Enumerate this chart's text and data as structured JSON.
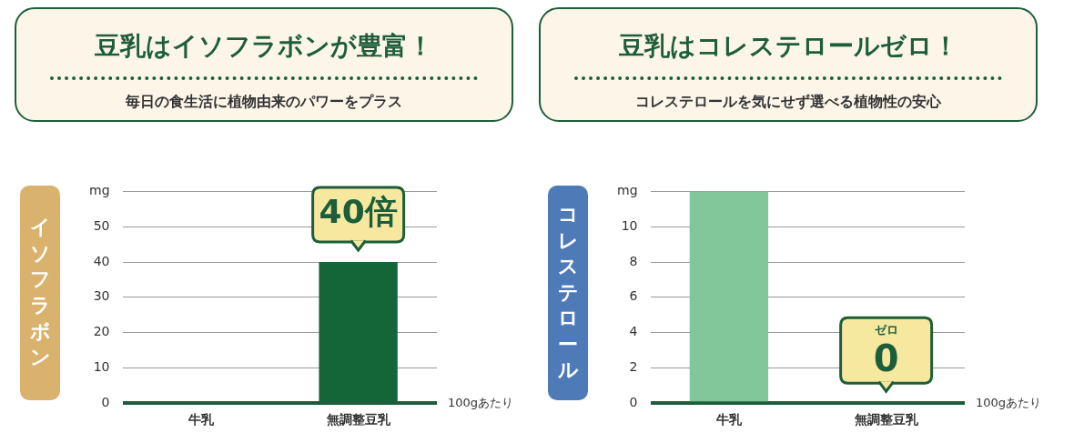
{
  "chart_data": [
    {
      "type": "bar",
      "title": "豆乳はイソフラボンが豊富！",
      "subtitle": "毎日の食生活に植物由来のパワーをプラス",
      "ylabel": "イソフラボン",
      "categories": [
        "牛乳",
        "無調整豆乳"
      ],
      "values": [
        0,
        40
      ],
      "color": "#146639",
      "ylim": [
        0,
        60
      ],
      "yticks": [
        0,
        10,
        20,
        30,
        40,
        50,
        {
          "value": 60,
          "label": "mg"
        }
      ],
      "grid": "y",
      "annotations": [
        {
          "text": "40倍",
          "x": "無調整豆乳",
          "y": 40
        },
        "100gあたり"
      ]
    },
    {
      "type": "bar",
      "title": "豆乳はコレステロールゼロ！",
      "subtitle": "コレステロールを気にせず選べる植物性の安心",
      "ylabel": "コレステロール",
      "categories": [
        "牛乳",
        "無調整豆乳"
      ],
      "values": [
        12,
        0
      ],
      "color": "#82c79a",
      "ylim": [
        0,
        12
      ],
      "yticks": [
        0,
        2,
        4,
        6,
        8,
        10,
        {
          "value": 12,
          "label": "mg"
        }
      ],
      "grid": "y",
      "annotations": [
        "ゼロ",
        {
          "text": "0",
          "x": "無調整豆乳",
          "y": 0
        },
        "100gあたり"
      ]
    }
  ]
}
